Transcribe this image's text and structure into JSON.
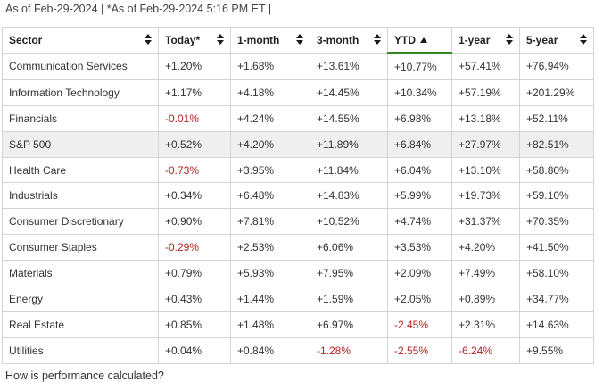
{
  "as_of": "As of Feb-29-2024 | *As of Feb-29-2024 5:16 PM ET |",
  "headers": {
    "sector": "Sector",
    "today": "Today*",
    "one_month": "1-month",
    "three_month": "3-month",
    "ytd": "YTD",
    "one_year": "1-year",
    "five_year": "5-year"
  },
  "rows": [
    {
      "sector": "Communication Services",
      "today": "+1.20%",
      "one_month": "+1.68%",
      "three_month": "+13.61%",
      "ytd": "+10.77%",
      "one_year": "+57.41%",
      "five_year": "+76.94%"
    },
    {
      "sector": "Information Technology",
      "today": "+1.17%",
      "one_month": "+4.18%",
      "three_month": "+14.45%",
      "ytd": "+10.34%",
      "one_year": "+57.19%",
      "five_year": "+201.29%"
    },
    {
      "sector": "Financials",
      "today": "-0.01%",
      "one_month": "+4.24%",
      "three_month": "+14.55%",
      "ytd": "+6.98%",
      "one_year": "+13.18%",
      "five_year": "+52.11%"
    },
    {
      "sector": "S&P 500",
      "today": "+0.52%",
      "one_month": "+4.20%",
      "three_month": "+11.89%",
      "ytd": "+6.84%",
      "one_year": "+27.97%",
      "five_year": "+82.51%"
    },
    {
      "sector": "Health Care",
      "today": "-0.73%",
      "one_month": "+3.95%",
      "three_month": "+11.84%",
      "ytd": "+6.04%",
      "one_year": "+13.10%",
      "five_year": "+58.80%"
    },
    {
      "sector": "Industrials",
      "today": "+0.34%",
      "one_month": "+6.48%",
      "three_month": "+14.83%",
      "ytd": "+5.99%",
      "one_year": "+19.73%",
      "five_year": "+59.10%"
    },
    {
      "sector": "Consumer Discretionary",
      "today": "+0.90%",
      "one_month": "+7.81%",
      "three_month": "+10.52%",
      "ytd": "+4.74%",
      "one_year": "+31.37%",
      "five_year": "+70.35%"
    },
    {
      "sector": "Consumer Staples",
      "today": "-0.29%",
      "one_month": "+2.53%",
      "three_month": "+6.06%",
      "ytd": "+3.53%",
      "one_year": "+4.20%",
      "five_year": "+41.50%"
    },
    {
      "sector": "Materials",
      "today": "+0.79%",
      "one_month": "+5.93%",
      "three_month": "+7.95%",
      "ytd": "+2.09%",
      "one_year": "+7.49%",
      "five_year": "+58.10%"
    },
    {
      "sector": "Energy",
      "today": "+0.43%",
      "one_month": "+1.44%",
      "three_month": "+1.59%",
      "ytd": "+2.05%",
      "one_year": "+0.89%",
      "five_year": "+34.77%"
    },
    {
      "sector": "Real Estate",
      "today": "+0.85%",
      "one_month": "+1.48%",
      "three_month": "+6.97%",
      "ytd": "-2.45%",
      "one_year": "+2.31%",
      "five_year": "+14.63%"
    },
    {
      "sector": "Utilities",
      "today": "+0.04%",
      "one_month": "+0.84%",
      "three_month": "-1.28%",
      "ytd": "-2.55%",
      "one_year": "-6.24%",
      "five_year": "+9.55%"
    }
  ],
  "sort": {
    "column": "YTD",
    "direction": "descending"
  },
  "highlighted_row": "S&P 500",
  "footer_link": "How is performance calculated?",
  "colors": {
    "negative": "#b32423",
    "sort_underline": "#368727",
    "highlight_row": "#efefef"
  }
}
